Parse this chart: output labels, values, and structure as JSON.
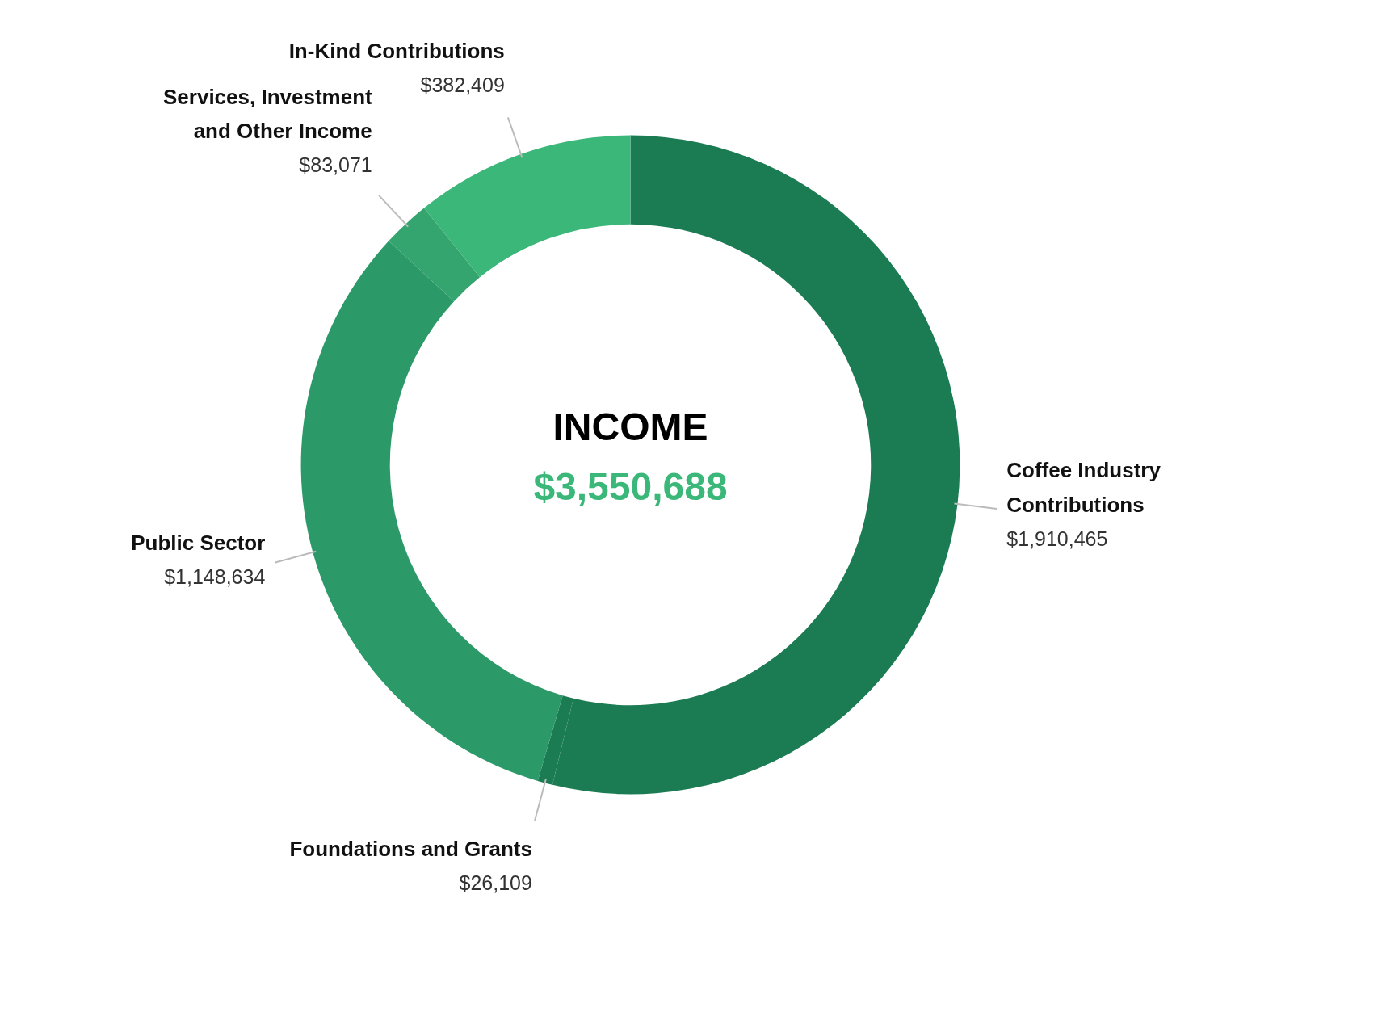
{
  "chart_data": {
    "type": "donut",
    "title": "INCOME",
    "subtitle": "$3,550,688",
    "categories": [
      "Coffee Industry Contributions",
      "Foundations and Grants",
      "Public Sector",
      "Services, Investment and Other Income",
      "In-Kind Contributions"
    ],
    "values": [
      1910465,
      26109,
      1148634,
      83071,
      382409
    ],
    "value_labels": [
      "$1,910,465",
      "$26,109",
      "$1,148,634",
      "$83,071",
      "$382,409"
    ],
    "colors": [
      "#1b7b53",
      "#1b7b53",
      "#2b9a68",
      "#34a56f",
      "#3bb77a"
    ]
  }
}
